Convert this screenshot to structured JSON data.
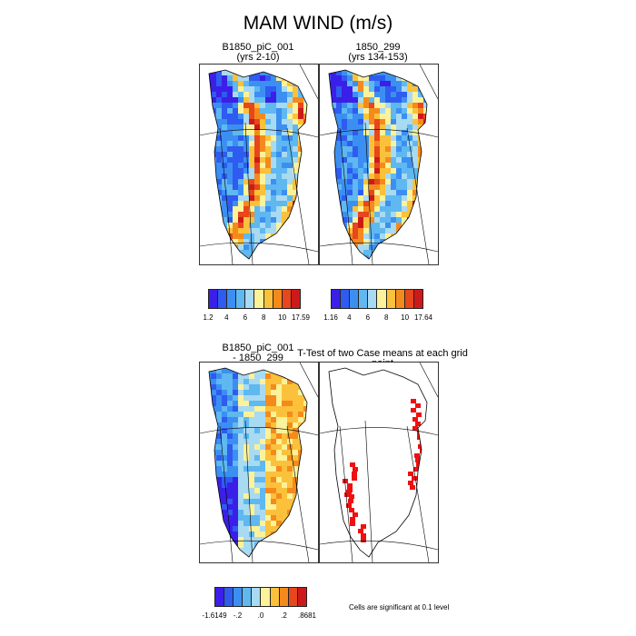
{
  "figure": {
    "title": "MAM WIND (m/s)",
    "note": "Cells are significant at 0.1 level"
  },
  "panels": {
    "case1": {
      "title_line1": "B1850_piC_001",
      "title_line2": "(yrs 2-10)"
    },
    "case2": {
      "title_line1": "1850_299",
      "title_line2": "(yrs 134-153)"
    },
    "diff": {
      "title_line1": "B1850_piC_001",
      "title_line2": "- 1850_299"
    },
    "ttest": {
      "title": "T-Test of two Case means at each grid point"
    }
  },
  "colorbars": {
    "case1": {
      "colors": [
        "#3b1fe8",
        "#2f5bf0",
        "#3c8ff2",
        "#5fb8f0",
        "#a8daf2",
        "#fbf29a",
        "#fbc13a",
        "#f58a1c",
        "#e8461c",
        "#cc1a1a"
      ],
      "ticks": [
        "1.2",
        "4",
        "6",
        "8",
        "10",
        "17.59"
      ]
    },
    "case2": {
      "colors": [
        "#3b1fe8",
        "#2f5bf0",
        "#3c8ff2",
        "#5fb8f0",
        "#a8daf2",
        "#fbf29a",
        "#fbc13a",
        "#f58a1c",
        "#e8461c",
        "#cc1a1a"
      ],
      "ticks": [
        "1.16",
        "4",
        "6",
        "8",
        "10",
        "17.64"
      ]
    },
    "diff": {
      "colors": [
        "#3b1fe8",
        "#2f5bf0",
        "#3c8ff2",
        "#5fb8f0",
        "#a8daf2",
        "#fbf29a",
        "#fbc13a",
        "#f58a1c",
        "#e8461c",
        "#cc1a1a"
      ],
      "ticks": [
        "-1.6149",
        "-.2",
        ".0",
        ".2",
        ".8681"
      ]
    }
  }
}
